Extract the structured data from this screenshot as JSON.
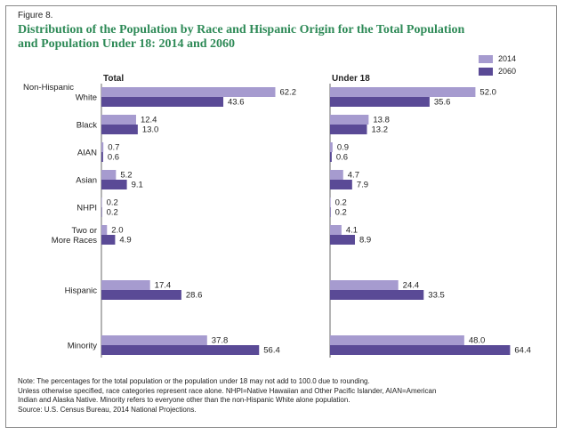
{
  "figure_label": "Figure 8.",
  "title_lines": [
    "Distribution of the Population by Race and Hispanic Origin for the Total Population",
    "and Population Under 18: 2014 and 2060"
  ],
  "notes": [
    "Note: The percentages for the total population or the population under 18 may not add to 100.0 due to rounding.",
    "Unless otherwise specified, race categories represent race alone. NHPI=Native Hawaiian and Other Pacific Islander, AIAN=American",
    "Indian and Alaska Native. Minority refers to everyone other than the non-Hispanic White alone population.",
    "Source: U.S. Census Bureau, 2014 National Projections."
  ],
  "colors": {
    "2014": "#a69bcf",
    "2060": "#5a4a96",
    "title": "#2e8a57"
  },
  "chart_data": {
    "type": "bar",
    "orientation": "horizontal",
    "group_header": "Non-Hispanic",
    "category_labels": [
      [
        "White"
      ],
      [
        "Black"
      ],
      [
        "AIAN"
      ],
      [
        "Asian"
      ],
      [
        "NHPI"
      ],
      [
        "Two or",
        "More Races"
      ],
      [
        "Hispanic"
      ],
      [
        "Minority"
      ]
    ],
    "categories": [
      "White",
      "Black",
      "AIAN",
      "Asian",
      "NHPI",
      "Two or More Races",
      "Hispanic",
      "Minority"
    ],
    "legend": {
      "placement": "top-right",
      "entries": [
        "2014",
        "2060"
      ]
    },
    "panels": [
      {
        "title": "Total",
        "xlim": [
          0,
          70
        ],
        "series": [
          {
            "name": "2014",
            "values": [
              62.2,
              12.4,
              0.7,
              5.2,
              0.2,
              2.0,
              17.4,
              37.8
            ]
          },
          {
            "name": "2060",
            "values": [
              43.6,
              13.0,
              0.6,
              9.1,
              0.2,
              4.9,
              28.6,
              56.4
            ]
          }
        ],
        "labels": {
          "2014": [
            "62.2",
            "12.4",
            "0.7",
            "5.2",
            "0.2",
            "2.0",
            "17.4",
            "37.8"
          ],
          "2060": [
            "43.6",
            "13.0",
            "0.6",
            "9.1",
            "0.2",
            "4.9",
            "28.6",
            "56.4"
          ]
        }
      },
      {
        "title": "Under 18",
        "xlim": [
          0,
          70
        ],
        "series": [
          {
            "name": "2014",
            "values": [
              52.0,
              13.8,
              0.9,
              4.7,
              0.2,
              4.1,
              24.4,
              48.0
            ]
          },
          {
            "name": "2060",
            "values": [
              35.6,
              13.2,
              0.6,
              7.9,
              0.2,
              8.9,
              33.5,
              64.4
            ]
          }
        ],
        "labels": {
          "2014": [
            "52.0",
            "13.8",
            "0.9",
            "4.7",
            "0.2",
            "4.1",
            "24.4",
            "48.0"
          ],
          "2060": [
            "35.6",
            "13.2",
            "0.6",
            "7.9",
            "0.2",
            "8.9",
            "33.5",
            "64.4"
          ]
        }
      }
    ]
  }
}
